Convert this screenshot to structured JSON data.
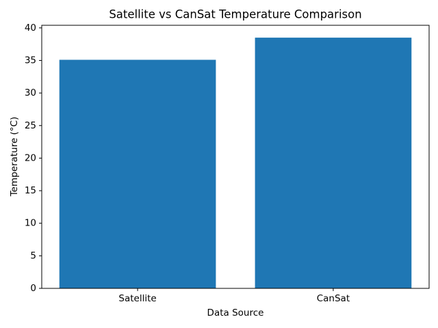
{
  "chart_data": {
    "type": "bar",
    "title": "Satellite vs CanSat Temperature Comparison",
    "x_label": "Data Source",
    "y_label": "Temperature (°C)",
    "categories": [
      "Satellite",
      "CanSat"
    ],
    "values": [
      35.1,
      38.5
    ],
    "color": "#1f77b4",
    "ylim": [
      0,
      40.4
    ],
    "yticks": [
      0,
      5,
      10,
      15,
      20,
      25,
      30,
      35,
      40
    ],
    "grid": false
  }
}
